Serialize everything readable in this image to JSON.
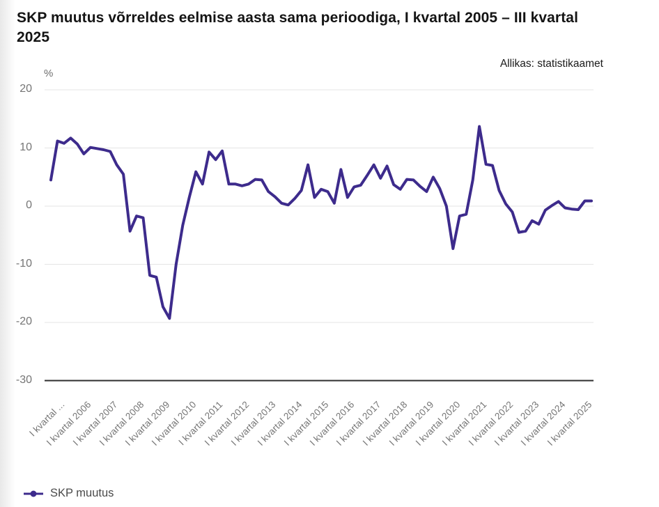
{
  "title": "SKP muutus võrreldes eelmise aasta sama perioodiga, I kvartal 2005 – III kvartal 2025",
  "source": "Allikas: statistikaamet",
  "y_unit": "%",
  "legend": {
    "label": "SKP muutus"
  },
  "colors": {
    "line": "#3d2b8c",
    "grid": "#e4e4e4",
    "axis": "#2e2e2e",
    "tick_text": "#757575"
  },
  "chart_data": {
    "type": "line",
    "title": "SKP muutus võrreldes eelmise aasta sama perioodiga, I kvartal 2005 – III kvartal 2025",
    "xlabel": "",
    "ylabel": "%",
    "ylim": [
      -30,
      20
    ],
    "grid": true,
    "legend_position": "bottom-left",
    "y_ticks": [
      20,
      10,
      0,
      -10,
      -20,
      -30
    ],
    "x_tick_labels": [
      "I kvartal ...",
      "I kvartal 2006",
      "I kvartal 2007",
      "I kvartal 2008",
      "I kvartal 2009",
      "I kvartal 2010",
      "I kvartal 2011",
      "I kvartal 2012",
      "I kvartal 2013",
      "I kvartal 2014",
      "I kvartal 2015",
      "I kvartal 2016",
      "I kvartal 2017",
      "I kvartal 2018",
      "I kvartal 2019",
      "I kvartal 2020",
      "I kvartal 2021",
      "I kvartal 2022",
      "I kvartal 2023",
      "I kvartal 2024",
      "I kvartal 2025"
    ],
    "x_description": "Quarterly points, I kvartal 2005 – III kvartal 2025",
    "series": [
      {
        "name": "SKP muutus",
        "values": [
          4.5,
          11.2,
          10.8,
          11.7,
          10.7,
          9.0,
          10.1,
          9.9,
          9.7,
          9.4,
          7.1,
          5.5,
          -4.3,
          -1.7,
          -2.0,
          -11.9,
          -12.2,
          -17.3,
          -19.3,
          -10.0,
          -3.3,
          1.5,
          5.9,
          3.8,
          9.3,
          8.0,
          9.5,
          3.8,
          3.8,
          3.5,
          3.8,
          4.6,
          4.5,
          2.5,
          1.6,
          0.5,
          0.2,
          1.3,
          2.7,
          7.1,
          1.5,
          2.9,
          2.5,
          0.5,
          6.3,
          1.5,
          3.3,
          3.6,
          5.3,
          7.1,
          4.8,
          6.9,
          3.7,
          2.9,
          4.6,
          4.5,
          3.4,
          2.5,
          5.0,
          3.0,
          0.0,
          -7.3,
          -1.7,
          -1.4,
          4.5,
          13.7,
          7.2,
          7.0,
          2.7,
          0.4,
          -1.0,
          -4.5,
          -4.3,
          -2.5,
          -3.1,
          -0.7,
          0.1,
          0.8,
          -0.3,
          -0.5,
          -0.6,
          0.9,
          0.9
        ]
      }
    ]
  }
}
